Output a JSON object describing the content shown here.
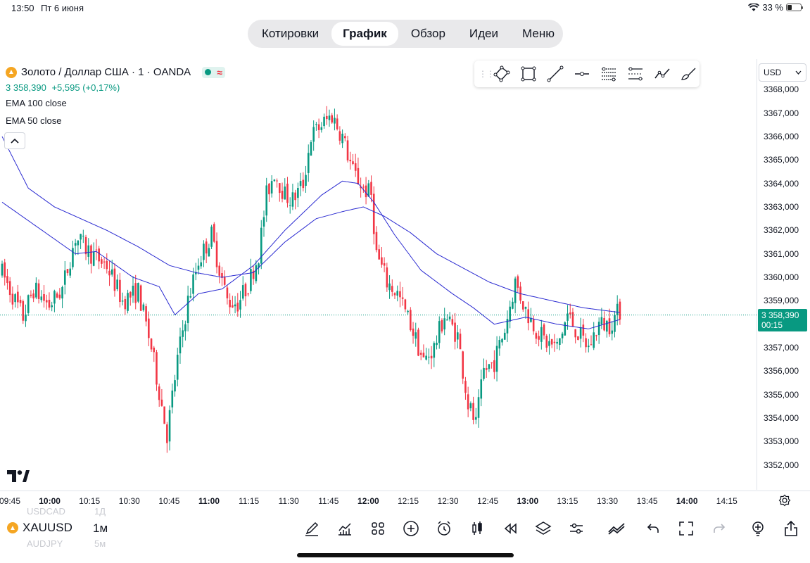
{
  "status_bar": {
    "time": "13:50",
    "date": "Пт 6 июня",
    "battery": "33 %",
    "battery_level": 0.33
  },
  "nav": {
    "tabs": [
      "Котировки",
      "График",
      "Обзор",
      "Идеи",
      "Меню"
    ],
    "active": "График"
  },
  "legend": {
    "symbol_title": "Золото / Доллар США · 1 · OANDA",
    "price": "3 358,390",
    "change": "+5,595 (+0,17%)",
    "indicators": [
      "EMA 100 close",
      "EMA 50 close"
    ]
  },
  "currency": "USD",
  "last_price": {
    "price": "3 358,390",
    "countdown": "00:15"
  },
  "colors": {
    "up": "#089981",
    "down": "#f23645",
    "ema": "#2a2ad1",
    "accent": "#089981"
  },
  "icons": {
    "draw_toolbar": [
      "polygon-icon",
      "rectangle-icon",
      "trend-line-icon",
      "horizontal-ray-icon",
      "fib-retracement-icon",
      "parallel-channel-icon",
      "path-icon",
      "brush-icon"
    ],
    "bottom_toolbar": [
      "pen-icon",
      "chart-type-icon",
      "indicators-grid-icon",
      "add-icon",
      "alert-icon",
      "candles-icon",
      "replay-icon",
      "layers-icon",
      "settings-sliders-icon",
      "compare-icon",
      "undo-icon",
      "fullscreen-icon",
      "redo-icon",
      "lightbulb-icon",
      "share-icon"
    ]
  },
  "bottom": {
    "symbol": "XAUUSD",
    "interval": "1м",
    "ghost_prev_symbol": "USDCAD",
    "ghost_prev_interval": "1Д",
    "ghost_next_symbol": "AUDJPY",
    "ghost_next_interval": "5м"
  },
  "chart_data": {
    "type": "candlestick",
    "title": "Золото / Доллар США · 1 · OANDA",
    "ylim": [
      3351.3,
      3369.3
    ],
    "y_ticks": [
      3368,
      3367,
      3366,
      3365,
      3364,
      3363,
      3362,
      3361,
      3360,
      3359,
      3357,
      3356,
      3355,
      3354,
      3353,
      3352
    ],
    "y_tick_labels": [
      "3368,000",
      "3367,000",
      "3366,000",
      "3365,000",
      "3364,000",
      "3363,000",
      "3362,000",
      "3361,000",
      "3360,000",
      "3359,000",
      "3357,000",
      "3356,000",
      "3355,000",
      "3354,000",
      "3353,000",
      "3352,000"
    ],
    "x_ticks": [
      "09:45",
      "10:00",
      "10:15",
      "10:30",
      "10:45",
      "11:00",
      "11:15",
      "11:30",
      "11:45",
      "12:00",
      "12:15",
      "12:30",
      "12:45",
      "13:00",
      "13:15",
      "13:30",
      "13:45",
      "14:00",
      "14:15"
    ],
    "x_ticks_bold": [
      "10:00",
      "11:00",
      "12:00",
      "13:00",
      "14:00"
    ],
    "grid": false,
    "last_price": 3358.39,
    "anchors": [
      [
        0,
        3360.2
      ],
      [
        5,
        3359.0
      ],
      [
        8,
        3358.3
      ],
      [
        12,
        3359.5
      ],
      [
        18,
        3358.8
      ],
      [
        23,
        3359.5
      ],
      [
        28,
        3361.7
      ],
      [
        34,
        3361.0
      ],
      [
        40,
        3360.5
      ],
      [
        46,
        3359.0
      ],
      [
        52,
        3359.4
      ],
      [
        57,
        3357.0
      ],
      [
        63,
        3353.3
      ],
      [
        67,
        3356.5
      ],
      [
        71,
        3359.0
      ],
      [
        75,
        3360.7
      ],
      [
        80,
        3361.8
      ],
      [
        86,
        3359.0
      ],
      [
        90,
        3358.9
      ],
      [
        94,
        3359.7
      ],
      [
        98,
        3361.0
      ],
      [
        101,
        3363.5
      ],
      [
        104,
        3364.5
      ],
      [
        108,
        3363.5
      ],
      [
        111,
        3363.3
      ],
      [
        115,
        3364.0
      ],
      [
        118,
        3366.0
      ],
      [
        122,
        3366.5
      ],
      [
        126,
        3366.9
      ],
      [
        130,
        3366.0
      ],
      [
        134,
        3364.5
      ],
      [
        138,
        3363.8
      ],
      [
        141,
        3363.5
      ],
      [
        143,
        3361.0
      ],
      [
        147,
        3359.8
      ],
      [
        151,
        3359.3
      ],
      [
        156,
        3358.0
      ],
      [
        161,
        3356.4
      ],
      [
        165,
        3357.0
      ],
      [
        169,
        3358.4
      ],
      [
        174,
        3357.5
      ],
      [
        178,
        3354.6
      ],
      [
        181,
        3353.7
      ],
      [
        184,
        3356.0
      ],
      [
        188,
        3356.4
      ],
      [
        192,
        3357.8
      ],
      [
        196,
        3359.8
      ],
      [
        200,
        3358.6
      ],
      [
        204,
        3357.8
      ],
      [
        208,
        3357.2
      ],
      [
        212,
        3357.0
      ],
      [
        216,
        3358.4
      ],
      [
        220,
        3357.6
      ],
      [
        224,
        3357.0
      ],
      [
        228,
        3358.0
      ],
      [
        232,
        3358.0
      ],
      [
        236,
        3358.6
      ]
    ],
    "ema50": [
      [
        0,
        3363.2
      ],
      [
        28,
        3361.0
      ],
      [
        36,
        3361.1
      ],
      [
        50,
        3360.0
      ],
      [
        60,
        3359.6
      ],
      [
        66,
        3358.4
      ],
      [
        75,
        3359.3
      ],
      [
        84,
        3359.5
      ],
      [
        96,
        3360.5
      ],
      [
        108,
        3362.0
      ],
      [
        122,
        3363.5
      ],
      [
        130,
        3364.1
      ],
      [
        136,
        3364.0
      ],
      [
        142,
        3363.2
      ],
      [
        150,
        3361.8
      ],
      [
        160,
        3360.3
      ],
      [
        172,
        3359.3
      ],
      [
        180,
        3358.7
      ],
      [
        188,
        3358.0
      ],
      [
        200,
        3358.3
      ],
      [
        212,
        3358.0
      ],
      [
        224,
        3357.8
      ],
      [
        236,
        3358.2
      ]
    ],
    "ema100": [
      [
        0,
        3366.0
      ],
      [
        10,
        3363.8
      ],
      [
        20,
        3363.0
      ],
      [
        30,
        3362.5
      ],
      [
        40,
        3362.0
      ],
      [
        52,
        3361.3
      ],
      [
        64,
        3360.5
      ],
      [
        74,
        3360.2
      ],
      [
        84,
        3360.0
      ],
      [
        96,
        3360.2
      ],
      [
        108,
        3361.5
      ],
      [
        120,
        3362.5
      ],
      [
        130,
        3362.8
      ],
      [
        138,
        3363.0
      ],
      [
        146,
        3362.6
      ],
      [
        156,
        3361.9
      ],
      [
        166,
        3361.0
      ],
      [
        176,
        3360.4
      ],
      [
        186,
        3359.8
      ],
      [
        198,
        3359.3
      ],
      [
        210,
        3359.0
      ],
      [
        222,
        3358.7
      ],
      [
        236,
        3358.5
      ]
    ]
  }
}
